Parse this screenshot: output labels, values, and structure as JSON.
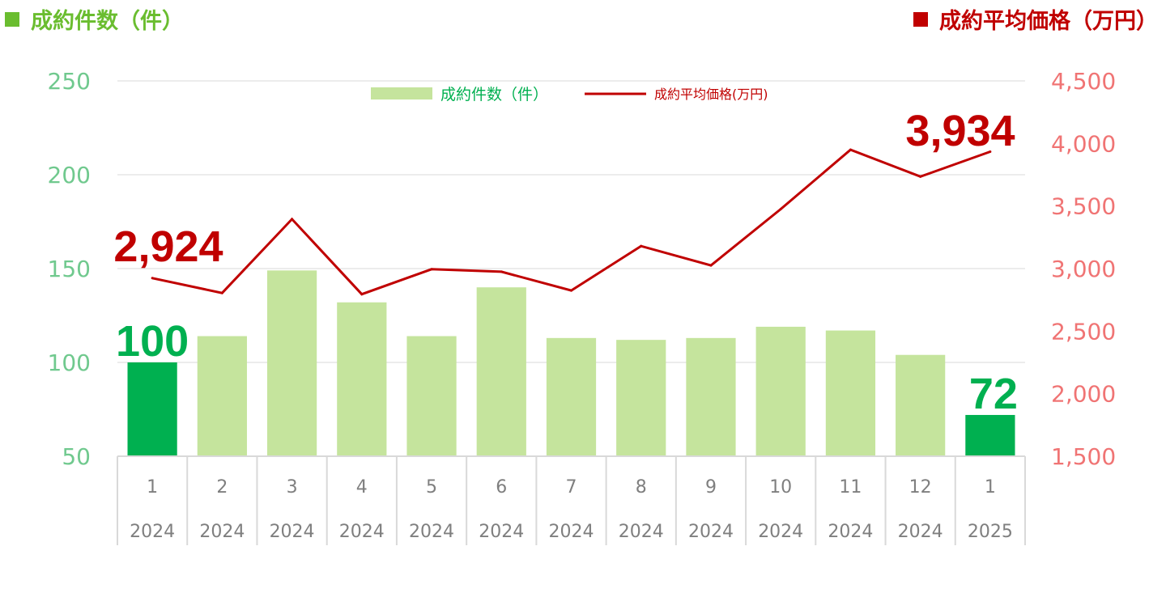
{
  "header": {
    "left_title": "成約件数（件）",
    "right_title": "成約平均価格（万円）"
  },
  "colors": {
    "bar": "#c5e49d",
    "bar_highlight": "#00b050",
    "line": "#c00000",
    "left_axis": "#70c98e",
    "right_axis": "#f07474",
    "left_title": "#6abd2f",
    "right_title": "#c00000",
    "callout_count": "#00b050",
    "callout_price": "#c00000"
  },
  "chart_data": {
    "type": "bar+line",
    "categories": [
      {
        "month": "1",
        "year": "2024"
      },
      {
        "month": "2",
        "year": "2024"
      },
      {
        "month": "3",
        "year": "2024"
      },
      {
        "month": "4",
        "year": "2024"
      },
      {
        "month": "5",
        "year": "2024"
      },
      {
        "month": "6",
        "year": "2024"
      },
      {
        "month": "7",
        "year": "2024"
      },
      {
        "month": "8",
        "year": "2024"
      },
      {
        "month": "9",
        "year": "2024"
      },
      {
        "month": "10",
        "year": "2024"
      },
      {
        "month": "11",
        "year": "2024"
      },
      {
        "month": "12",
        "year": "2024"
      },
      {
        "month": "1",
        "year": "2025"
      }
    ],
    "series": [
      {
        "name": "成約件数（件）",
        "type": "bar",
        "axis": "left",
        "values": [
          100,
          114,
          149,
          132,
          114,
          140,
          113,
          112,
          113,
          119,
          117,
          104,
          72
        ],
        "highlight": [
          0,
          12
        ]
      },
      {
        "name": "成約平均価格(万円)",
        "type": "line",
        "axis": "right",
        "values": [
          2924,
          2805,
          3395,
          2795,
          2995,
          2975,
          2825,
          3180,
          3025,
          3475,
          3950,
          3735,
          3934
        ]
      }
    ],
    "y_left": {
      "min": 50,
      "max": 250,
      "ticks": [
        50,
        100,
        150,
        200,
        250
      ]
    },
    "y_right": {
      "min": 1500,
      "max": 4500,
      "ticks": [
        "1,500",
        "2,000",
        "2,500",
        "3,000",
        "3,500",
        "4,000",
        "4,500"
      ]
    },
    "callouts": {
      "first_count": "100",
      "last_count": "72",
      "first_price": "2,924",
      "last_price": "3,934"
    },
    "legend": {
      "position": "top-center"
    },
    "grid": true
  }
}
